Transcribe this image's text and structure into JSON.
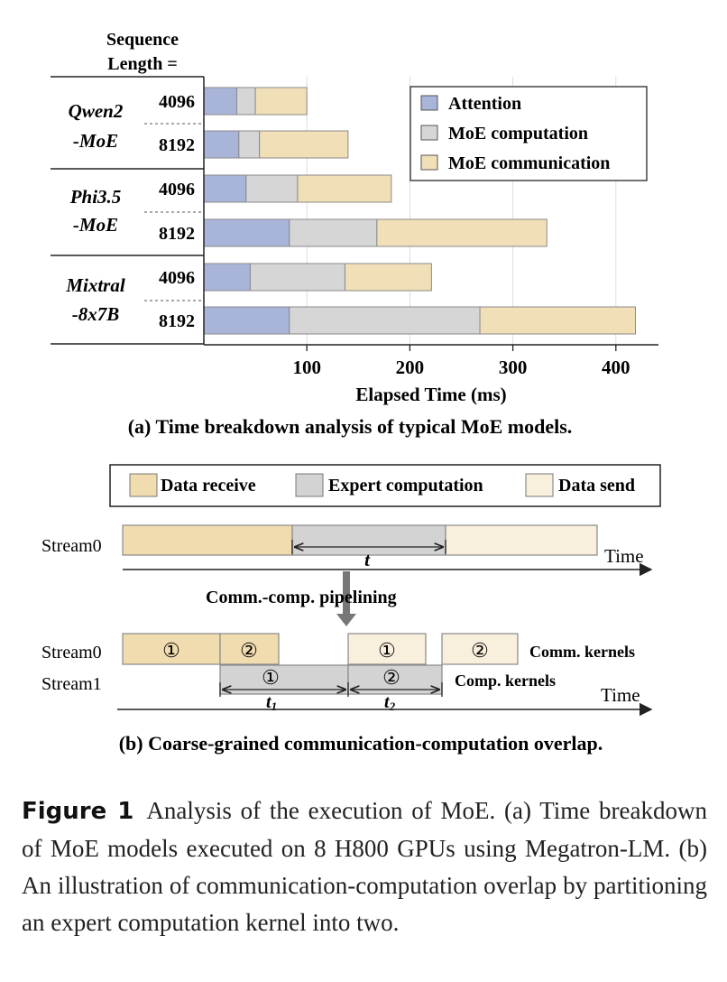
{
  "chart_data": [
    {
      "type": "bar",
      "orientation": "horizontal",
      "stacked": true,
      "title": "(a) Time breakdown analysis of typical MoE models.",
      "xlabel": "Elapsed Time (ms)",
      "ylabel_header": [
        "Sequence",
        "Length ="
      ],
      "xlim": [
        0,
        430
      ],
      "xticks": [
        100,
        200,
        300,
        400
      ],
      "grid": "vertical",
      "legend_position": "top-right",
      "groups": [
        {
          "label_line1": "Qwen2",
          "label_line2": "-MoE"
        },
        {
          "label_line1": "Phi3.5",
          "label_line2": "-MoE"
        },
        {
          "label_line1": "Mixtral",
          "label_line2": "-8x7B"
        }
      ],
      "series": [
        {
          "name": "Attention",
          "color": "#a9b4d9"
        },
        {
          "name": "MoE computation",
          "color": "#d6d6d6"
        },
        {
          "name": "MoE communication",
          "color": "#f1dfb7"
        }
      ],
      "rows": [
        {
          "group": 0,
          "seq": "4096",
          "values": [
            32,
            18,
            50
          ]
        },
        {
          "group": 0,
          "seq": "8192",
          "values": [
            34,
            20,
            86
          ]
        },
        {
          "group": 1,
          "seq": "4096",
          "values": [
            41,
            50,
            91
          ]
        },
        {
          "group": 1,
          "seq": "8192",
          "values": [
            83,
            85,
            165
          ]
        },
        {
          "group": 2,
          "seq": "4096",
          "values": [
            45,
            92,
            84
          ]
        },
        {
          "group": 2,
          "seq": "8192",
          "values": [
            83,
            185,
            151
          ]
        }
      ]
    },
    {
      "type": "diagram",
      "title": "(b) Coarse-grained communication-computation overlap.",
      "legend": [
        {
          "name": "Data receive",
          "color": "#f1dcb0"
        },
        {
          "name": "Expert computation",
          "color": "#d3d3d3"
        },
        {
          "name": "Data send",
          "color": "#f9efdd"
        }
      ],
      "stream0_label": "Stream0",
      "stream1_label": "Stream1",
      "time_label": "Time",
      "t_label": "t",
      "t1_label": "t",
      "t1_sub": "1",
      "t2_label": "t",
      "t2_sub": "2",
      "pipelining_label": "Comm.-comp. pipelining",
      "comm_kernels_label": "Comm. kernels",
      "comp_kernels_label": "Comp. kernels",
      "chunk1": "①",
      "chunk2": "②"
    }
  ],
  "caption": {
    "label": "Figure 1",
    "text": "Analysis of the execution of MoE. (a) Time breakdown of MoE models executed on 8 H800 GPUs using Megatron-LM. (b) An illustration of communication-computation overlap by partitioning an expert computation kernel into two."
  }
}
